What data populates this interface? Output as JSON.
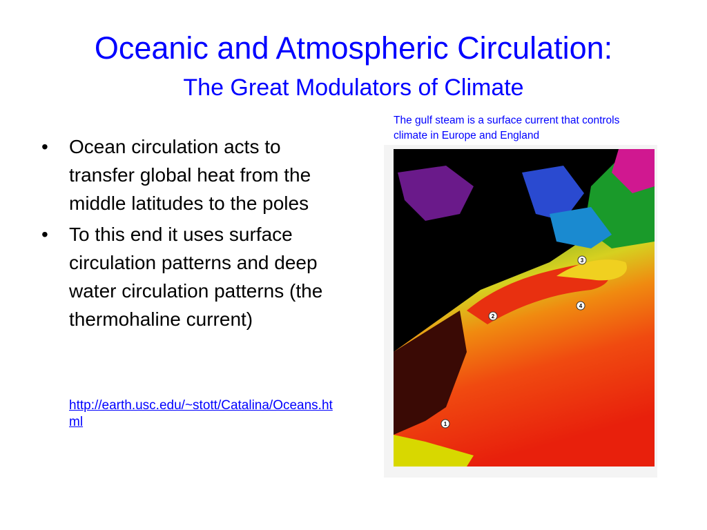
{
  "header": {
    "title": "Oceanic and Atmospheric Circulation:",
    "subtitle": "The Great Modulators of Climate"
  },
  "caption": "The gulf steam is a surface current that controls climate in Europe and England",
  "bullets": [
    "Ocean circulation acts to transfer global heat from the middle latitudes to the poles",
    "To this end it uses surface circulation patterns and deep water circulation patterns (the thermohaline current)"
  ],
  "link": "http://earth.usc.edu/~stott/Catalina/Oceans.html",
  "map": {
    "markers": [
      "1",
      "2",
      "3",
      "4"
    ]
  }
}
